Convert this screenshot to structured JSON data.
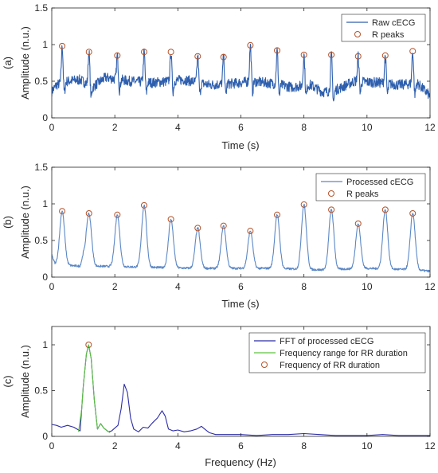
{
  "figure": {
    "panel_labels": [
      "(a)",
      "(b)",
      "(c)"
    ]
  },
  "chart_data": [
    {
      "type": "line",
      "panel": "(a)",
      "xlabel": "Time (s)",
      "ylabel": "Amplitude (n.u.)",
      "xlim": [
        0,
        12
      ],
      "ylim": [
        0,
        1.5
      ],
      "xticks": [
        0,
        2,
        4,
        6,
        8,
        10,
        12
      ],
      "yticks": [
        0,
        0.5,
        1,
        1.5
      ],
      "legend": {
        "position": "top-right",
        "entries": [
          "Raw cECG",
          "R peaks"
        ]
      },
      "series": [
        {
          "name": "Raw cECG",
          "color": "#2e5fae",
          "kind": "line",
          "baseline": [
            [
              0,
              0.36
            ],
            [
              0.15,
              0.45
            ],
            [
              0.5,
              0.5
            ],
            [
              0.9,
              0.52
            ],
            [
              1.3,
              0.42
            ],
            [
              1.7,
              0.55
            ],
            [
              2.5,
              0.5
            ],
            [
              3.2,
              0.48
            ],
            [
              4.2,
              0.52
            ],
            [
              5.0,
              0.45
            ],
            [
              5.8,
              0.47
            ],
            [
              6.3,
              0.5
            ],
            [
              7.0,
              0.47
            ],
            [
              7.6,
              0.42
            ],
            [
              8.2,
              0.45
            ],
            [
              8.6,
              0.35
            ],
            [
              9.0,
              0.38
            ],
            [
              9.2,
              0.42
            ],
            [
              9.6,
              0.5
            ],
            [
              10.4,
              0.48
            ],
            [
              11.0,
              0.45
            ],
            [
              11.6,
              0.47
            ],
            [
              12,
              0.3
            ]
          ],
          "noise": 0.07
        },
        {
          "name": "R peaks",
          "kind": "markers",
          "color": "#b5532a",
          "x": [
            0.33,
            1.18,
            2.08,
            2.93,
            3.78,
            4.63,
            5.45,
            6.3,
            7.15,
            8.0,
            8.87,
            9.72,
            10.58,
            11.45
          ],
          "y": [
            0.98,
            0.9,
            0.85,
            0.9,
            0.9,
            0.84,
            0.83,
            0.99,
            0.92,
            0.86,
            0.86,
            0.84,
            0.85,
            0.91
          ]
        }
      ]
    },
    {
      "type": "line",
      "panel": "(b)",
      "xlabel": "Time (s)",
      "ylabel": "Amplitude (n.u.)",
      "xlim": [
        0,
        12
      ],
      "ylim": [
        0,
        1.5
      ],
      "xticks": [
        0,
        2,
        4,
        6,
        8,
        10,
        12
      ],
      "yticks": [
        0,
        0.5,
        1,
        1.5
      ],
      "legend": {
        "position": "top-right",
        "entries": [
          "Processed cECG",
          "R peaks"
        ]
      },
      "series": [
        {
          "name": "Processed cECG",
          "color": "#5b87c5",
          "kind": "line",
          "baseline": [
            [
              0,
              0.3
            ],
            [
              0.1,
              0.18
            ],
            [
              0.5,
              0.16
            ],
            [
              0.9,
              0.15
            ],
            [
              1.0,
              0.3
            ],
            [
              1.4,
              0.15
            ],
            [
              2.5,
              0.14
            ],
            [
              4.5,
              0.12
            ],
            [
              6.0,
              0.12
            ],
            [
              7.0,
              0.12
            ],
            [
              8.5,
              0.1
            ],
            [
              10.0,
              0.12
            ],
            [
              11.5,
              0.1
            ],
            [
              12,
              0.08
            ]
          ],
          "noise": 0.015
        },
        {
          "name": "R peaks",
          "kind": "markers",
          "color": "#b5532a",
          "x": [
            0.33,
            1.18,
            2.08,
            2.93,
            3.78,
            4.63,
            5.45,
            6.3,
            7.15,
            8.0,
            8.87,
            9.72,
            10.58,
            11.45
          ],
          "y": [
            0.9,
            0.87,
            0.85,
            0.98,
            0.79,
            0.67,
            0.7,
            0.63,
            0.85,
            0.99,
            0.92,
            0.73,
            0.92,
            0.87
          ]
        }
      ]
    },
    {
      "type": "line",
      "panel": "(c)",
      "xlabel": "Frequency (Hz)",
      "ylabel": "Amplitude (n.u.)",
      "xlim": [
        0,
        12
      ],
      "ylim": [
        0,
        1.2
      ],
      "xticks": [
        0,
        2,
        4,
        6,
        8,
        10,
        12
      ],
      "yticks": [
        0,
        0.5,
        1
      ],
      "legend": {
        "position": "top-right",
        "entries": [
          "FFT of processed cECG",
          "Frequency range for RR duration",
          "Frequency of RR duration"
        ]
      },
      "series": [
        {
          "name": "FFT of processed cECG",
          "color": "#2c2ca8",
          "kind": "line",
          "x": [
            0,
            0.15,
            0.3,
            0.5,
            0.7,
            0.9,
            0.95,
            1.0,
            1.1,
            1.17,
            1.25,
            1.35,
            1.45,
            1.55,
            1.65,
            1.8,
            1.9,
            2.0,
            2.1,
            2.2,
            2.3,
            2.4,
            2.5,
            2.6,
            2.75,
            2.9,
            3.05,
            3.2,
            3.35,
            3.5,
            3.6,
            3.7,
            3.85,
            4.0,
            4.2,
            4.4,
            4.6,
            4.75,
            4.85,
            5.0,
            5.2,
            5.5,
            6.0,
            6.5,
            7.0,
            7.5,
            8.0,
            8.5,
            9.0,
            9.5,
            10.0,
            10.5,
            11.0,
            11.5,
            12.0
          ],
          "y": [
            0.13,
            0.12,
            0.1,
            0.12,
            0.1,
            0.06,
            0.3,
            0.55,
            0.9,
            1.0,
            0.85,
            0.4,
            0.08,
            0.14,
            0.09,
            0.05,
            0.06,
            0.09,
            0.12,
            0.3,
            0.57,
            0.48,
            0.2,
            0.08,
            0.05,
            0.1,
            0.09,
            0.15,
            0.2,
            0.28,
            0.22,
            0.08,
            0.06,
            0.07,
            0.05,
            0.06,
            0.08,
            0.11,
            0.08,
            0.04,
            0.02,
            0.02,
            0.02,
            0.01,
            0.02,
            0.02,
            0.03,
            0.02,
            0.01,
            0.01,
            0.01,
            0.02,
            0.01,
            0.01,
            0.01
          ]
        },
        {
          "name": "Frequency range for RR duration",
          "color": "#5cc23e",
          "kind": "line",
          "x": [
            0.85,
            0.95,
            1.0,
            1.1,
            1.17,
            1.25,
            1.35,
            1.45,
            1.55,
            1.65,
            1.85
          ],
          "y": [
            0.05,
            0.3,
            0.55,
            0.9,
            1.0,
            0.85,
            0.4,
            0.08,
            0.14,
            0.09,
            0.04
          ]
        },
        {
          "name": "Frequency of RR duration",
          "kind": "markers",
          "color": "#b5532a",
          "x": [
            1.17
          ],
          "y": [
            1.0
          ]
        }
      ]
    }
  ]
}
